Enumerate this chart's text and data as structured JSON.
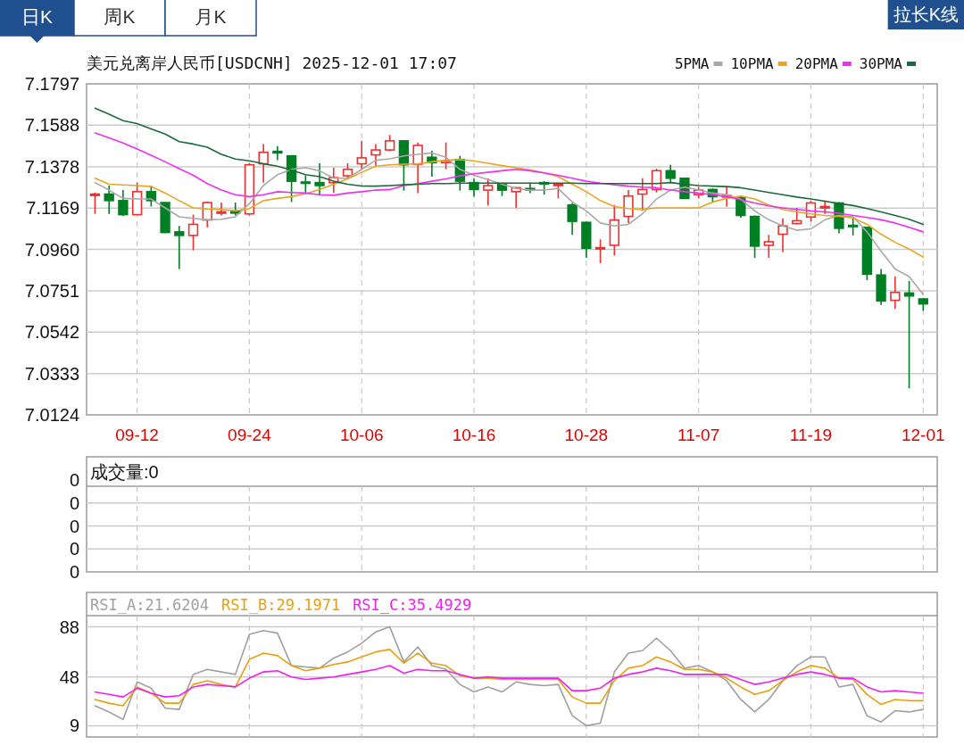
{
  "chart_data": [
    {
      "type": "candlestick",
      "title": "美元兑离岸人民币[USDCNH] 2025-12-01 17:07",
      "annotations": [
        "日K",
        "周K",
        "月K",
        "拉长K线"
      ],
      "categories": [
        null,
        null,
        null,
        "09-12",
        null,
        null,
        null,
        null,
        null,
        null,
        null,
        "09-24",
        null,
        null,
        null,
        null,
        null,
        null,
        null,
        "10-06",
        null,
        null,
        null,
        null,
        null,
        null,
        null,
        "10-16",
        null,
        null,
        null,
        null,
        null,
        null,
        null,
        "10-28",
        null,
        null,
        null,
        null,
        null,
        null,
        null,
        "11-07",
        null,
        null,
        null,
        null,
        null,
        null,
        null,
        "11-19",
        null,
        null,
        null,
        null,
        null,
        null,
        null,
        "12-01"
      ],
      "ohlc": [
        [
          7.1233,
          7.1248,
          7.114,
          7.124
        ],
        [
          7.124,
          7.1283,
          7.114,
          7.1207
        ],
        [
          7.1207,
          7.126,
          7.1129,
          7.1136
        ],
        [
          7.1136,
          7.1298,
          7.1136,
          7.1252
        ],
        [
          7.1252,
          7.1283,
          7.1177,
          7.1207
        ],
        [
          7.1197,
          7.1197,
          7.1043,
          7.1046
        ],
        [
          7.1049,
          7.1079,
          7.0861,
          7.1031
        ],
        [
          7.1031,
          7.1136,
          7.0956,
          7.1087
        ],
        [
          7.1109,
          7.1203,
          7.1072,
          7.1197
        ],
        [
          7.1143,
          7.1197,
          7.1132,
          7.115
        ],
        [
          7.1155,
          7.1197,
          7.1132,
          7.1144
        ],
        [
          7.114,
          7.1396,
          7.1132,
          7.1388
        ],
        [
          7.1393,
          7.1493,
          7.1298,
          7.1451
        ],
        [
          7.1456,
          7.1483,
          7.1411,
          7.1448
        ],
        [
          7.1433,
          7.1436,
          7.12,
          7.1305
        ],
        [
          7.1301,
          7.1335,
          7.1245,
          7.1295
        ],
        [
          7.1298,
          7.1396,
          7.1233,
          7.1283
        ],
        [
          7.1298,
          7.1373,
          7.1245,
          7.1323
        ],
        [
          7.1332,
          7.1396,
          7.132,
          7.1365
        ],
        [
          7.1393,
          7.1509,
          7.1365,
          7.1423
        ],
        [
          7.1438,
          7.1493,
          7.1381,
          7.1463
        ],
        [
          7.1463,
          7.1539,
          7.1456,
          7.1509
        ],
        [
          7.1509,
          7.1512,
          7.1257,
          7.1388
        ],
        [
          7.1391,
          7.1501,
          7.1245,
          7.1486
        ],
        [
          7.1426,
          7.1459,
          7.1328,
          7.1399
        ],
        [
          7.1399,
          7.1501,
          7.1365,
          7.1408
        ],
        [
          7.1414,
          7.1433,
          7.1257,
          7.1305
        ],
        [
          7.1298,
          7.132,
          7.1227,
          7.1263
        ],
        [
          7.126,
          7.132,
          7.1182,
          7.1283
        ],
        [
          7.129,
          7.1298,
          7.123,
          7.126
        ],
        [
          7.1252,
          7.1275,
          7.117,
          7.1272
        ],
        [
          7.1268,
          7.1298,
          7.1245,
          7.1263
        ],
        [
          7.1298,
          7.1305,
          7.1237,
          7.1293
        ],
        [
          7.1287,
          7.1293,
          7.1218,
          7.129
        ],
        [
          7.1185,
          7.1195,
          7.1034,
          7.1102
        ],
        [
          7.1097,
          7.11,
          7.0918,
          7.0966
        ],
        [
          7.0963,
          7.1011,
          7.0891,
          7.0969
        ],
        [
          7.0981,
          7.1185,
          7.0929,
          7.1109
        ],
        [
          7.1127,
          7.126,
          7.1094,
          7.123
        ],
        [
          7.124,
          7.132,
          7.1155,
          7.1263
        ],
        [
          7.1263,
          7.1368,
          7.1248,
          7.1358
        ],
        [
          7.1358,
          7.1388,
          7.1298,
          7.132
        ],
        [
          7.132,
          7.1323,
          7.1215,
          7.1218
        ],
        [
          7.1237,
          7.1275,
          7.1218,
          7.126
        ],
        [
          7.1263,
          7.1268,
          7.1197,
          7.1227
        ],
        [
          7.1225,
          7.1275,
          7.1177,
          7.1233
        ],
        [
          7.1222,
          7.123,
          7.1121,
          7.1132
        ],
        [
          7.1127,
          7.1132,
          7.0918,
          7.0977
        ],
        [
          7.0981,
          7.1034,
          7.0918,
          7.0999
        ],
        [
          7.1037,
          7.1117,
          7.0947,
          7.1079
        ],
        [
          7.1091,
          7.117,
          7.1087,
          7.1105
        ],
        [
          7.1124,
          7.1207,
          7.1102,
          7.1195
        ],
        [
          7.117,
          7.1207,
          7.114,
          7.1177
        ],
        [
          7.1195,
          7.12,
          7.1042,
          7.1067
        ],
        [
          7.1082,
          7.1117,
          7.1031,
          7.1076
        ],
        [
          7.1072,
          7.1075,
          7.0805,
          7.0835
        ],
        [
          7.0831,
          7.0861,
          7.068,
          7.07
        ],
        [
          7.0703,
          7.0823,
          7.066,
          7.0743
        ],
        [
          7.074,
          7.0801,
          7.0258,
          7.0725
        ],
        [
          7.071,
          7.0715,
          7.065,
          7.0685
        ]
      ],
      "colors": [
        "#f03030",
        "#007f24",
        "#007f24",
        "#f03030",
        "#007f24",
        "#007f24",
        "#007f24",
        "#f03030",
        "#f03030",
        "#f03030",
        "#007f24",
        "#f03030",
        "#f03030",
        "#007f24",
        "#007f24",
        "#007f24",
        "#007f24",
        "#f03030",
        "#f03030",
        "#f03030",
        "#f03030",
        "#f03030",
        "#007f24",
        "#f03030",
        "#007f24",
        "#f03030",
        "#007f24",
        "#007f24",
        "#f03030",
        "#007f24",
        "#f03030",
        "#007f24",
        "#007f24",
        "#f03030",
        "#007f24",
        "#007f24",
        "#f03030",
        "#f03030",
        "#f03030",
        "#f03030",
        "#f03030",
        "#007f24",
        "#007f24",
        "#f03030",
        "#007f24",
        "#f03030",
        "#007f24",
        "#007f24",
        "#f03030",
        "#f03030",
        "#f03030",
        "#f03030",
        "#f03030",
        "#007f24",
        "#007f24",
        "#007f24",
        "#007f24",
        "#f03030",
        "#007f24",
        "#007f24"
      ],
      "series": [
        {
          "type": "line",
          "name": "5PMA",
          "color": "#a8a8a8",
          "values": [
            7.1298,
            7.126,
            7.1218,
            7.1215,
            7.1215,
            7.117,
            7.1125,
            7.1117,
            7.111,
            7.1113,
            7.1125,
            7.1192,
            7.1283,
            7.1338,
            7.1365,
            7.1373,
            7.1358,
            7.132,
            7.132,
            7.1365,
            7.1411,
            7.1418,
            7.1433,
            7.1441,
            7.1448,
            7.1426,
            7.1365,
            7.1335,
            7.1313,
            7.129,
            7.1268,
            7.126,
            7.126,
            7.1268,
            7.12,
            7.1155,
            7.1094,
            7.1079,
            7.1087,
            7.114,
            7.1215,
            7.126,
            7.1275,
            7.126,
            7.1245,
            7.1237,
            7.1215,
            7.1155,
            7.111,
            7.1079,
            7.1057,
            7.1064,
            7.111,
            7.1132,
            7.1125,
            7.1049,
            7.0951,
            7.0861,
            7.0823,
            7.0733
          ]
        },
        {
          "type": "line",
          "name": "10PMA",
          "color": "#eba420",
          "values": [
            7.132,
            7.129,
            7.1286,
            7.1283,
            7.1278,
            7.1245,
            7.1207,
            7.117,
            7.1165,
            7.1162,
            7.1155,
            7.1167,
            7.1207,
            7.1218,
            7.1227,
            7.1242,
            7.1263,
            7.129,
            7.1317,
            7.135,
            7.1381,
            7.1388,
            7.1391,
            7.1393,
            7.1403,
            7.1411,
            7.1414,
            7.1408,
            7.1396,
            7.1384,
            7.1373,
            7.1362,
            7.1347,
            7.1328,
            7.129,
            7.1252,
            7.1207,
            7.1177,
            7.1167,
            7.1162,
            7.117,
            7.117,
            7.117,
            7.117,
            7.12,
            7.1218,
            7.123,
            7.1215,
            7.1185,
            7.1162,
            7.115,
            7.114,
            7.1132,
            7.1128,
            7.112,
            7.1087,
            7.1037,
            7.0996,
            7.0962,
            7.0921
          ]
        },
        {
          "type": "line",
          "name": "20PMA",
          "color": "#f030f0",
          "values": [
            7.1549,
            7.1524,
            7.1498,
            7.1468,
            7.1436,
            7.1403,
            7.1369,
            7.1335,
            7.1293,
            7.126,
            7.1237,
            7.1227,
            7.1237,
            7.1252,
            7.1248,
            7.1245,
            7.1237,
            7.1234,
            7.1245,
            7.1252,
            7.126,
            7.1263,
            7.1283,
            7.1293,
            7.1305,
            7.1317,
            7.1332,
            7.1343,
            7.135,
            7.1358,
            7.1365,
            7.1358,
            7.1347,
            7.1335,
            7.132,
            7.1305,
            7.1295,
            7.1287,
            7.128,
            7.1275,
            7.1272,
            7.126,
            7.1252,
            7.1245,
            7.1237,
            7.1227,
            7.1212,
            7.1195,
            7.118,
            7.117,
            7.1162,
            7.1155,
            7.115,
            7.1143,
            7.1132,
            7.1122,
            7.111,
            7.1094,
            7.1072,
            7.1049
          ]
        },
        {
          "type": "line",
          "name": "30PMA",
          "color": "#1a6b3a",
          "values": [
            7.1674,
            7.1644,
            7.1611,
            7.1596,
            7.1569,
            7.1543,
            7.1505,
            7.1493,
            7.1477,
            7.1441,
            7.1417,
            7.1408,
            7.1393,
            7.1381,
            7.1361,
            7.1338,
            7.1328,
            7.1305,
            7.129,
            7.1281,
            7.128,
            7.1283,
            7.1287,
            7.129,
            7.1293,
            7.1293,
            7.1295,
            7.1295,
            7.1295,
            7.1295,
            7.1295,
            7.1295,
            7.1295,
            7.1295,
            7.1295,
            7.1293,
            7.1293,
            7.1293,
            7.1293,
            7.1293,
            7.1293,
            7.1298,
            7.129,
            7.1283,
            7.128,
            7.1278,
            7.1272,
            7.126,
            7.1248,
            7.1237,
            7.1225,
            7.1215,
            7.1204,
            7.1192,
            7.1182,
            7.1167,
            7.115,
            7.1132,
            7.1113,
            7.1087
          ]
        }
      ],
      "ylim": [
        7.0124,
        7.1797
      ],
      "yticks": [
        7.0124,
        7.0333,
        7.0542,
        7.0751,
        {
          "value": 7.096,
          "label": "7.0960"
        },
        7.1169,
        7.1378,
        7.1588,
        7.1797
      ],
      "grid": true,
      "legend": "top right"
    },
    {
      "type": "other",
      "title": "成交量:0",
      "annotations": [
        "0",
        "0",
        "0",
        "0",
        "0"
      ]
    },
    {
      "type": "line",
      "categories": [
        null,
        null,
        null,
        null,
        null,
        null,
        null,
        null,
        null,
        null,
        null,
        null,
        null,
        null,
        null,
        null,
        null,
        null,
        null,
        null,
        null,
        null,
        null,
        null,
        null,
        null,
        null,
        null,
        null,
        null,
        null,
        null,
        null,
        null,
        null,
        null,
        null,
        null,
        null,
        null,
        null,
        null,
        null,
        null,
        null,
        null,
        null,
        null,
        null,
        null,
        null,
        null,
        null,
        null,
        null,
        null,
        null,
        null,
        null,
        null
      ],
      "series": [
        {
          "name": "RSI_A:21.6204",
          "color": "#a0a0a0",
          "values": [
            25,
            20,
            14,
            44,
            39,
            23,
            22,
            50,
            54,
            52,
            50,
            82,
            85,
            83,
            57,
            56,
            55,
            63,
            68,
            75,
            84,
            88,
            60,
            72,
            57,
            54,
            42,
            36,
            40,
            36,
            44,
            42,
            41,
            42,
            17,
            9,
            11,
            52,
            67,
            69,
            79,
            69,
            55,
            57,
            52,
            45,
            30,
            20,
            30,
            45,
            57,
            64,
            64,
            40,
            42,
            17,
            12,
            21,
            20,
            22
          ]
        },
        {
          "name": "RSI_B:29.1971",
          "color": "#e8a010",
          "values": [
            30,
            27,
            25,
            40,
            35,
            27,
            27,
            42,
            45,
            42,
            40,
            62,
            67,
            65,
            57,
            53,
            55,
            58,
            60,
            64,
            68,
            70,
            59,
            67,
            59,
            57,
            49,
            47,
            47,
            46,
            46,
            46,
            46,
            46,
            32,
            27,
            27,
            45,
            55,
            57,
            64,
            60,
            54,
            54,
            52,
            47,
            40,
            34,
            37,
            45,
            52,
            57,
            55,
            47,
            46,
            34,
            26,
            30,
            29,
            29
          ]
        },
        {
          "name": "RSI_C:35.4929",
          "color": "#f020f0",
          "values": [
            36,
            34,
            32,
            39,
            35,
            32,
            33,
            40,
            42,
            41,
            40,
            47,
            52,
            53,
            48,
            46,
            47,
            48,
            50,
            52,
            54,
            57,
            51,
            54,
            53,
            53,
            50,
            47,
            48,
            47,
            47,
            47,
            47,
            47,
            37,
            37,
            39,
            47,
            50,
            52,
            55,
            53,
            50,
            50,
            50,
            50,
            46,
            42,
            44,
            47,
            50,
            52,
            50,
            47,
            47,
            40,
            36,
            37,
            36,
            35
          ]
        }
      ],
      "ylim": [
        0,
        97
      ],
      "yticks": [
        9,
        48,
        88
      ],
      "grid": true,
      "legend": "top left"
    }
  ]
}
